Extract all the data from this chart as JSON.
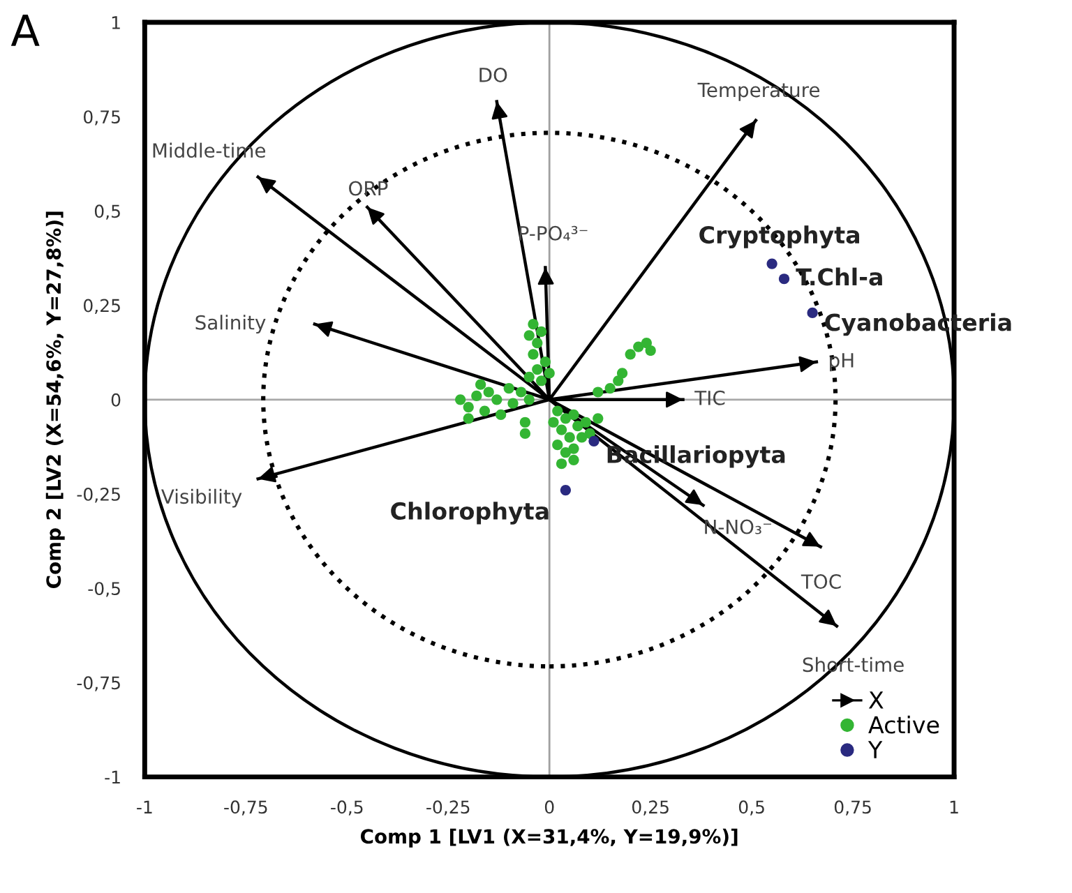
{
  "chart_data": {
    "type": "scatter",
    "title": "A",
    "xlabel": "Comp 1 [LV1 (X=31,4%, Y=19,9%)]",
    "ylabel": "Comp 2 [LV2 (X=54,6%, Y=27,8%)]",
    "xlim": [
      -1,
      1
    ],
    "ylim": [
      -1,
      1
    ],
    "xticks": [
      -1,
      {
        "value": -0.75,
        "label": "-0,75"
      },
      {
        "value": -0.5,
        "label": "-0,5"
      },
      {
        "value": -0.25,
        "label": "-0,25"
      },
      0,
      {
        "value": 0.25,
        "label": "0,25"
      },
      {
        "value": 0.5,
        "label": "0,5"
      },
      {
        "value": 0.75,
        "label": "0,75"
      },
      1
    ],
    "yticks": [
      -1,
      {
        "value": -0.75,
        "label": "-0,75"
      },
      {
        "value": -0.5,
        "label": "-0,5"
      },
      {
        "value": -0.25,
        "label": "-0,25"
      },
      0,
      {
        "value": 0.25,
        "label": "0,25"
      },
      {
        "value": 0.5,
        "label": "0,5"
      },
      {
        "value": 0.75,
        "label": "0,75"
      },
      1
    ],
    "grid": false,
    "legend": "bottom right",
    "ref_lines": [
      {
        "axis": "x",
        "value": 0,
        "color": "#a0a0a0"
      },
      {
        "axis": "y",
        "value": 0,
        "color": "#a8a8a8"
      }
    ],
    "series": [
      {
        "type": "line",
        "name": "X",
        "color": "#000000",
        "line_style": "solid",
        "marker": "none",
        "x": [
          0,
          -0.13,
          null,
          0,
          0.51,
          null,
          0,
          -0.72,
          null,
          0,
          -0.45,
          null,
          0,
          -0.01,
          null,
          0,
          -0.58,
          null,
          0,
          0.66,
          null,
          0,
          0.33,
          null,
          0,
          -0.72,
          null,
          0,
          0.38,
          null,
          0,
          0.67,
          null,
          0,
          0.71
        ],
        "values": [
          0,
          0.79,
          null,
          0,
          0.74,
          null,
          0,
          0.59,
          null,
          0,
          0.51,
          null,
          0,
          0.35,
          null,
          0,
          0.2,
          null,
          0,
          0.1,
          null,
          0,
          0,
          null,
          0,
          -0.21,
          null,
          0,
          -0.28,
          null,
          0,
          -0.39,
          null,
          0,
          -0.6
        ]
      },
      {
        "name": "Active",
        "color": "#33b533",
        "marker": "circle",
        "x": [
          -0.22,
          -0.2,
          -0.18,
          -0.16,
          -0.15,
          -0.13,
          -0.12,
          -0.1,
          -0.09,
          -0.07,
          -0.05,
          -0.2,
          -0.06,
          -0.17,
          -0.06,
          -0.05,
          -0.04,
          -0.03,
          -0.02,
          -0.04,
          -0.01,
          -0.03,
          -0.02,
          0,
          -0.05,
          0.02,
          0.04,
          0.06,
          0.03,
          0.05,
          0.07,
          0.09,
          0.02,
          0.04,
          0.06,
          0.08,
          0.03,
          0.06,
          0.1,
          0.12,
          0.01,
          0.2,
          0.22,
          0.24,
          0.25,
          0.17,
          0.18,
          0.15,
          0.12
        ],
        "values": [
          0,
          -0.02,
          0.01,
          -0.03,
          0.02,
          0,
          -0.04,
          0.03,
          -0.01,
          0.02,
          0,
          -0.05,
          -0.06,
          0.04,
          -0.09,
          0.17,
          0.2,
          0.15,
          0.18,
          0.12,
          0.1,
          0.08,
          0.05,
          0.07,
          0.06,
          -0.03,
          -0.05,
          -0.04,
          -0.08,
          -0.1,
          -0.07,
          -0.06,
          -0.12,
          -0.14,
          -0.13,
          -0.1,
          -0.17,
          -0.16,
          -0.09,
          -0.05,
          -0.06,
          0.12,
          0.14,
          0.15,
          0.13,
          0.05,
          0.07,
          0.03,
          0.02
        ]
      },
      {
        "name": "Y",
        "color": "#2a2a80",
        "marker": "circle",
        "x": [
          0.55,
          0.58,
          0.65,
          0.11,
          0.04
        ],
        "values": [
          0.36,
          0.32,
          0.23,
          -0.11,
          -0.24
        ]
      }
    ],
    "annotations": [
      {
        "text": "DO",
        "x": -0.13,
        "y": 0.79
      },
      {
        "text": "Temperature",
        "x": 0.51,
        "y": 0.74
      },
      {
        "text": "Middle-time",
        "x": -0.72,
        "y": 0.59
      },
      {
        "text": "ORP",
        "x": -0.45,
        "y": 0.51
      },
      {
        "text": "P-PO₄³⁻",
        "x": -0.01,
        "y": 0.35
      },
      {
        "text": "Salinity",
        "x": -0.58,
        "y": 0.2
      },
      {
        "text": "pH",
        "x": 0.66,
        "y": 0.1
      },
      {
        "text": "TIC",
        "x": 0.33,
        "y": 0
      },
      {
        "text": "Visibility",
        "x": -0.72,
        "y": -0.21
      },
      {
        "text": "N-NO₃⁻",
        "x": 0.38,
        "y": -0.28
      },
      {
        "text": "TOC",
        "x": 0.67,
        "y": -0.39
      },
      {
        "text": "Short-time",
        "x": 0.71,
        "y": -0.6
      },
      {
        "text": "Cryptophyta",
        "x": 0.55,
        "y": 0.36
      },
      {
        "text": "T.Chl-a",
        "x": 0.58,
        "y": 0.32
      },
      {
        "text": "Cyanobacteria",
        "x": 0.65,
        "y": 0.23
      },
      {
        "text": "Bacillariopyta",
        "x": 0.11,
        "y": -0.11
      },
      {
        "text": "Chlorophyta",
        "x": 0.04,
        "y": -0.24
      }
    ]
  }
}
